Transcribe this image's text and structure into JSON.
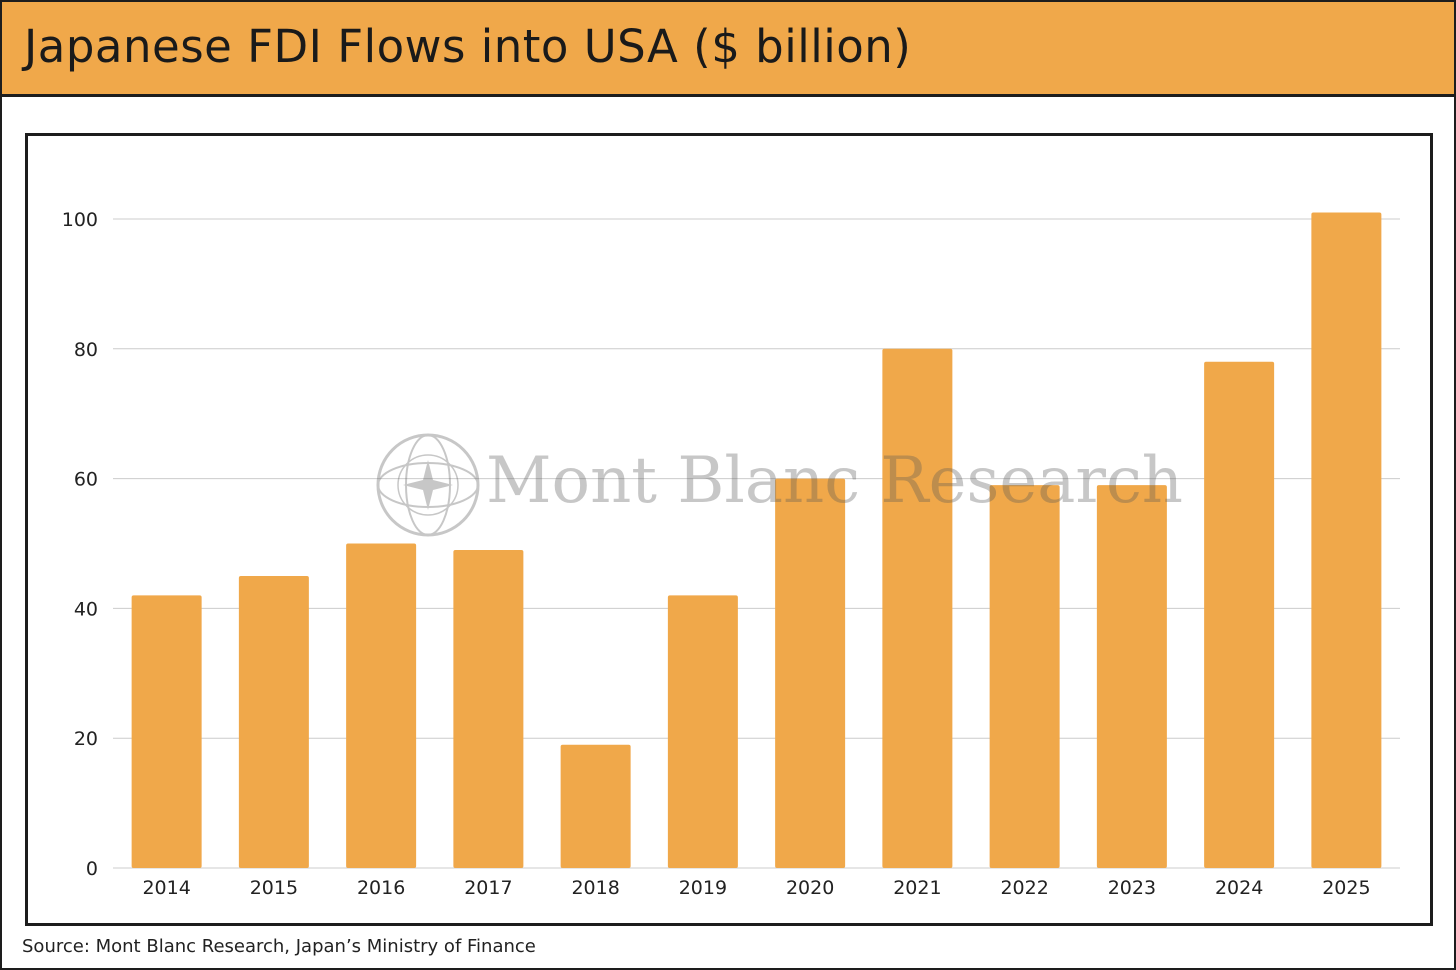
{
  "header": {
    "title": "Japanese FDI Flows into USA ($ billion)"
  },
  "footer": {
    "source": "Source: Mont Blanc Research, Japan’s Ministry of Finance"
  },
  "watermark": {
    "text": "Mont Blanc Research"
  },
  "colors": {
    "bar": "#F0A84A",
    "title_bar": "#F0A84A",
    "grid": "#cccccc",
    "border": "#1d1d1d",
    "text": "#222222"
  },
  "chart_data": {
    "type": "bar",
    "categories": [
      "2014",
      "2015",
      "2016",
      "2017",
      "2018",
      "2019",
      "2020",
      "2021",
      "2022",
      "2023",
      "2024",
      "2025"
    ],
    "values": [
      42,
      45,
      50,
      49,
      19,
      42,
      60,
      80,
      59,
      59,
      78,
      101
    ],
    "title": "Japanese FDI Flows into USA ($ billion)",
    "xlabel": "",
    "ylabel": "",
    "ylim": [
      0,
      100
    ],
    "yticks": [
      "0",
      "20",
      "40",
      "60",
      "80",
      "100"
    ],
    "grid": true,
    "legend": "none"
  }
}
